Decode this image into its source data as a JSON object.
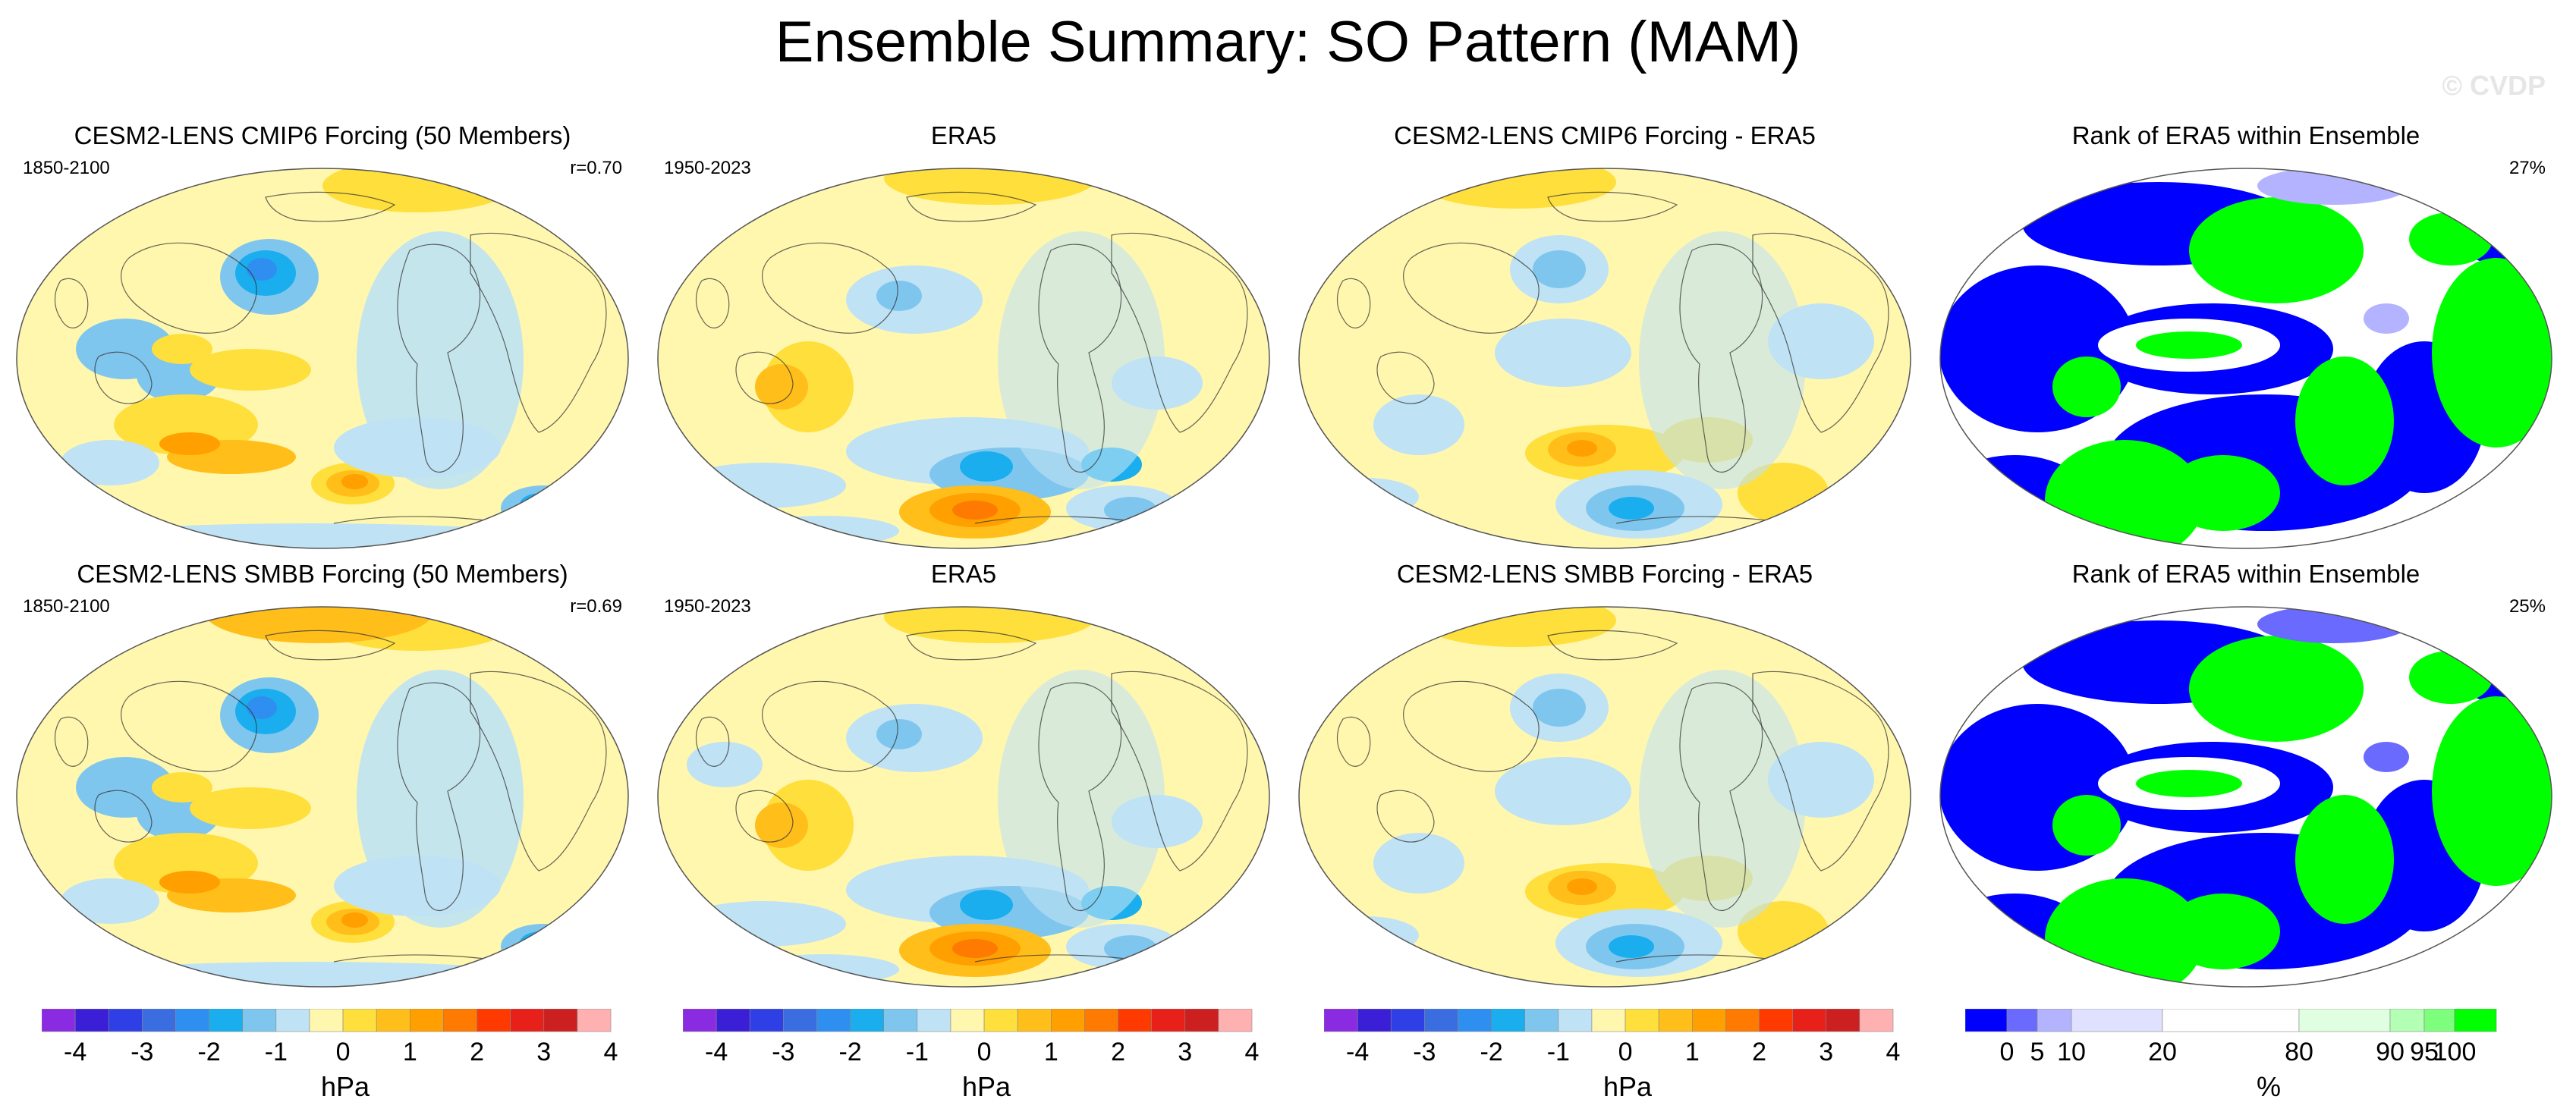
{
  "title": "Ensemble Summary: SO Pattern (MAM)",
  "watermark": "© CVDP",
  "rows": [
    {
      "panels": [
        {
          "title": "CESM2-LENS CMIP6 Forcing (50 Members)",
          "left": "1850-2100",
          "right": "r=0.70",
          "type": "anomaly",
          "variant": "model"
        },
        {
          "title": "ERA5",
          "left": "1950-2023",
          "right": "",
          "type": "anomaly",
          "variant": "obs"
        },
        {
          "title": "CESM2-LENS CMIP6 Forcing - ERA5",
          "left": "",
          "right": "",
          "type": "anomaly",
          "variant": "diff"
        },
        {
          "title": "Rank of ERA5 within Ensemble",
          "left": "",
          "right": "27%",
          "type": "rank",
          "variant": "rank"
        }
      ]
    },
    {
      "panels": [
        {
          "title": "CESM2-LENS SMBB Forcing (50 Members)",
          "left": "1850-2100",
          "right": "r=0.69",
          "type": "anomaly",
          "variant": "model"
        },
        {
          "title": "ERA5",
          "left": "1950-2023",
          "right": "",
          "type": "anomaly",
          "variant": "obs"
        },
        {
          "title": "CESM2-LENS SMBB Forcing - ERA5",
          "left": "",
          "right": "",
          "type": "anomaly",
          "variant": "diff"
        },
        {
          "title": "Rank of ERA5 within Ensemble",
          "left": "",
          "right": "25%",
          "type": "rank",
          "variant": "rank"
        }
      ]
    }
  ],
  "colorbars": [
    {
      "title": "hPa",
      "type": "anomaly",
      "labels": [
        "-4",
        "-3",
        "-2",
        "-1",
        "0",
        "1",
        "2",
        "3",
        "4"
      ]
    },
    {
      "title": "hPa",
      "type": "anomaly",
      "labels": [
        "-4",
        "-3",
        "-2",
        "-1",
        "0",
        "1",
        "2",
        "3",
        "4"
      ]
    },
    {
      "title": "hPa",
      "type": "anomaly",
      "labels": [
        "-4",
        "-3",
        "-2",
        "-1",
        "0",
        "1",
        "2",
        "3",
        "4"
      ]
    },
    {
      "title": "%",
      "type": "rank",
      "labels": [
        "0",
        "5",
        "10",
        "20",
        "80",
        "90",
        "95",
        "100"
      ]
    }
  ],
  "colors": {
    "anomaly": [
      "#8a2be2",
      "#3a1fd6",
      "#2f3fe6",
      "#3a6de0",
      "#2f8ff0",
      "#1aaeee",
      "#7fc6ee",
      "#bfe2f4",
      "#fff7ae",
      "#ffdf3c",
      "#ffbe1a",
      "#ff9f00",
      "#ff7a00",
      "#ff3a00",
      "#e8201a",
      "#cc2020",
      "#ffb0b0"
    ],
    "rank": [
      "#0000ff",
      "#6a6aff",
      "#b3b3ff",
      "#e0e0ff",
      "#ffffff",
      "#e0ffe0",
      "#b3ffb3",
      "#7dff7d",
      "#00ff00"
    ],
    "coastline": "#333333",
    "map_outline": "#555555"
  }
}
